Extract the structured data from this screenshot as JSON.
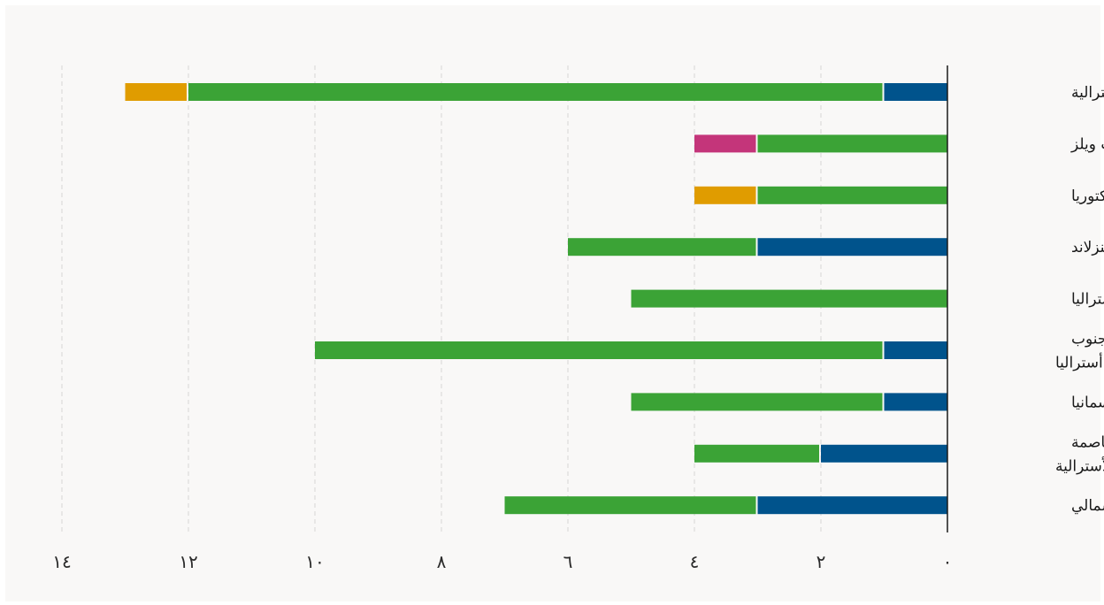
{
  "chart_data": {
    "type": "bar",
    "orientation": "horizontal-stacked",
    "direction": "right-to-left",
    "categories": [
      "الحكومة الأسترالية",
      "نيو ساوث ويلز",
      "ولاية فيكتوريا",
      "ولاية كوينزلاند",
      "ولاية غرب أستراليا",
      "ولاية جنوب أستراليا",
      "تسمانيا",
      "إقليم العاصمة الأسترالية",
      "الإقليم الشمالي"
    ],
    "series": [
      {
        "color": "#00538c",
        "values": [
          1.0,
          0,
          0,
          3.0,
          0,
          1.0,
          1.0,
          2.0,
          3.0
        ]
      },
      {
        "color": "#3ba336",
        "values": [
          11.0,
          3.0,
          3.0,
          3.0,
          5.0,
          9.0,
          4.0,
          2.0,
          4.0
        ]
      },
      {
        "color": "#e09c00",
        "values": [
          1.0,
          0,
          1.0,
          0,
          0,
          0,
          0,
          0,
          0
        ]
      },
      {
        "color": "#c4357a",
        "values": [
          0,
          1.0,
          0,
          0,
          0,
          0,
          0,
          0,
          0
        ]
      }
    ],
    "x_ticks": [
      {
        "value": 0,
        "label": "٠"
      },
      {
        "value": 2,
        "label": "٢"
      },
      {
        "value": 4,
        "label": "٤"
      },
      {
        "value": 6,
        "label": "٦"
      },
      {
        "value": 8,
        "label": "٨"
      },
      {
        "value": 10,
        "label": "١٠"
      },
      {
        "value": 12,
        "label": "١٢"
      },
      {
        "value": 14,
        "label": "١٤"
      }
    ],
    "xlim": [
      0,
      14
    ],
    "grid": true,
    "legend": "none"
  }
}
